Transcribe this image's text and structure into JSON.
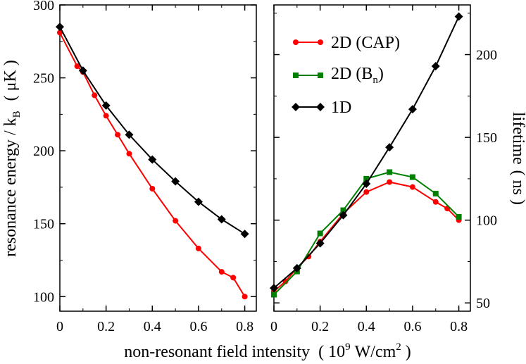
{
  "chart_data": [
    {
      "type": "line",
      "panel": "left",
      "ylabel": {
        "main": "resonance energy / k",
        "sub": "B",
        "unit": "( μK )"
      },
      "ylim": [
        90,
        300
      ],
      "xlim": [
        0,
        0.85
      ],
      "xticks": [
        0,
        0.2,
        0.4,
        0.6,
        0.8
      ],
      "xtick_labels": [
        "0",
        "0.2",
        "0.4",
        "0.6",
        "0.8"
      ],
      "yticks": [
        100,
        150,
        200,
        250,
        300
      ],
      "ytick_labels": [
        "100",
        "150",
        "200",
        "250",
        "300"
      ],
      "series": [
        {
          "name": "2D (CAP)",
          "color": "#ff0000",
          "marker": "circle",
          "x": [
            0,
            0.075,
            0.1,
            0.15,
            0.2,
            0.25,
            0.3,
            0.4,
            0.5,
            0.6,
            0.7,
            0.75,
            0.8
          ],
          "y": [
            281,
            258,
            254,
            238,
            224,
            211,
            198,
            174,
            152,
            133,
            117,
            113,
            100
          ]
        },
        {
          "name": "1D",
          "color": "#000000",
          "marker": "diamond",
          "x": [
            0,
            0.1,
            0.2,
            0.3,
            0.4,
            0.5,
            0.6,
            0.7,
            0.8
          ],
          "y": [
            285,
            255,
            231,
            211,
            194,
            179,
            165,
            153,
            143
          ]
        }
      ]
    },
    {
      "type": "line",
      "panel": "right",
      "ylabel": {
        "main": "lifetime",
        "unit": "( ns )"
      },
      "ylim": [
        45,
        230
      ],
      "xlim": [
        0,
        0.85
      ],
      "xticks": [
        0,
        0.2,
        0.4,
        0.6,
        0.8
      ],
      "xtick_labels": [
        "0",
        "0.2",
        "0.4",
        "0.6",
        "0.8"
      ],
      "yticks": [
        50,
        100,
        150,
        200
      ],
      "ytick_labels": [
        "50",
        "100",
        "150",
        "200"
      ],
      "series": [
        {
          "name": "2D (CAP)",
          "color": "#ff0000",
          "marker": "circle",
          "x": [
            0,
            0.05,
            0.1,
            0.15,
            0.2,
            0.3,
            0.4,
            0.5,
            0.6,
            0.7,
            0.75,
            0.8
          ],
          "y": [
            57,
            63,
            71,
            78,
            87,
            104,
            117,
            123,
            120,
            111,
            107,
            100
          ]
        },
        {
          "name": "2D (B_n)",
          "color": "#008000",
          "marker": "square",
          "x": [
            0,
            0.1,
            0.2,
            0.3,
            0.4,
            0.5,
            0.6,
            0.7,
            0.8
          ],
          "y": [
            55,
            69,
            92,
            106,
            125,
            129,
            126,
            116,
            102
          ]
        },
        {
          "name": "1D",
          "color": "#000000",
          "marker": "diamond",
          "x": [
            0,
            0.1,
            0.2,
            0.3,
            0.4,
            0.5,
            0.6,
            0.7,
            0.8
          ],
          "y": [
            59,
            71,
            86,
            103,
            122,
            144,
            167,
            193,
            223
          ]
        }
      ]
    }
  ],
  "shared": {
    "xlabel": {
      "main": "non-resonant field intensity",
      "open": "(",
      "base": "10",
      "exp": "9",
      "mid": "W/cm",
      "exp2": "2",
      "close": ")"
    }
  },
  "legend": {
    "placement": "top-left of right panel",
    "entries": [
      {
        "label": "2D (CAP)",
        "color": "#ff0000",
        "marker": "circle"
      },
      {
        "label_main": "2D (B",
        "label_sub": "n",
        "label_end": ")",
        "color": "#008000",
        "marker": "square"
      },
      {
        "label": "1D",
        "color": "#000000",
        "marker": "diamond"
      }
    ]
  }
}
